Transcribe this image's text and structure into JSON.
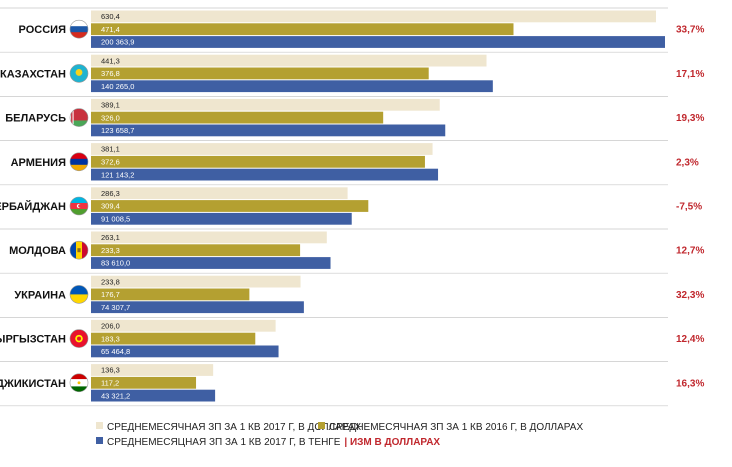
{
  "colors": {
    "bar_2017_usd": "#efe6cf",
    "bar_2016_usd": "#b4a031",
    "bar_2017_kzt": "#3f5fa3",
    "change": "#c0272d",
    "separator": "#c8c8c8"
  },
  "chart_data": {
    "type": "bar",
    "orientation": "horizontal",
    "categories": [
      "РОССИЯ",
      "КАЗАХСТАН",
      "БЕЛАРУСЬ",
      "АРМЕНИЯ",
      "АЗЕРБАЙДЖАН",
      "МОЛДОВА",
      "УКРАИНА",
      "КЫРГЫЗСТАН",
      "ТАДЖИКИСТАН"
    ],
    "flags": [
      "russia-flag-icon",
      "kazakhstan-flag-icon",
      "belarus-flag-icon",
      "armenia-flag-icon",
      "azerbaijan-flag-icon",
      "moldova-flag-icon",
      "ukraine-flag-icon",
      "kyrgyzstan-flag-icon",
      "tajikistan-flag-icon"
    ],
    "series": [
      {
        "name": "СРЕДНЕМЕСЯЧНАЯ ЗП ЗА 1 КВ 2017 Г, В ДОЛЛАРАХ",
        "values": [
          630.4,
          441.3,
          389.1,
          381.1,
          286.3,
          263.1,
          233.8,
          206.0,
          136.3
        ],
        "labels": [
          "630,4",
          "441,3",
          "389,1",
          "381,1",
          "286,3",
          "263,1",
          "233,8",
          "206,0",
          "136,3"
        ]
      },
      {
        "name": "СРЕДНЕМЕСЯЧНАЯ ЗП ЗА 1 КВ 2016 Г, В ДОЛЛАРАХ",
        "values": [
          471.4,
          376.8,
          326.0,
          372.6,
          309.4,
          233.3,
          176.7,
          183.3,
          117.2
        ],
        "labels": [
          "471,4",
          "376,8",
          "326,0",
          "372,6",
          "309,4",
          "233,3",
          "176,7",
          "183,3",
          "117,2"
        ]
      },
      {
        "name": "СРЕДНЕМЕСЯЦНАЯ ЗП ЗА 1 КВ 2017 Г, В ТЕНГЕ",
        "values": [
          200363.9,
          140265.0,
          123658.7,
          121143.2,
          91008.5,
          83610.0,
          74307.7,
          65464.8,
          43321.2
        ],
        "labels": [
          "200 363,9",
          "140 265,0",
          "123 658,7",
          "121 143,2",
          "91 008,5",
          "83 610,0",
          "74 307,7",
          "65 464,8",
          "43 321,2"
        ]
      }
    ],
    "change_usd": [
      "33,7%",
      "17,1%",
      "19,3%",
      "2,3%",
      "-7,5%",
      "12,7%",
      "32,3%",
      "12,4%",
      "16,3%"
    ],
    "legend": [
      {
        "text": "СРЕДНЕМЕСЯЧНАЯ ЗП ЗА 1 КВ 2017 Г, В ДОЛЛАРАХ"
      },
      {
        "text": "СРЕДНЕМЕСЯЧНАЯ ЗП ЗА 1 КВ 2016 Г, В ДОЛЛАРАХ"
      },
      {
        "text": "СРЕДНЕМЕСЯЦНАЯ ЗП ЗА 1 КВ 2017 Г, В ТЕНГЕ",
        "extra": "| ИЗМ В ДОЛЛАРАХ"
      }
    ],
    "legend_placement": "bottom",
    "grid": false
  }
}
